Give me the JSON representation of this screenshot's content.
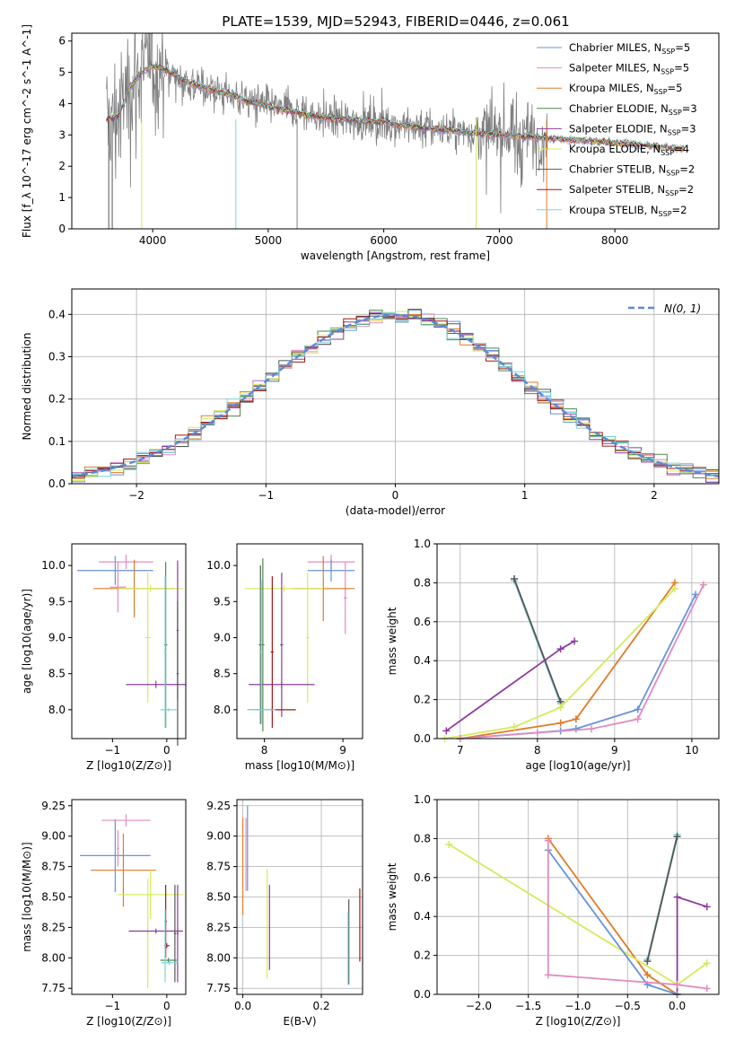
{
  "figure": {
    "title": "PLATE=1539, MJD=52943, FIBERID=0446, z=0.061"
  },
  "colors": {
    "chabrier_miles": "#6593dc",
    "salpeter_miles": "#e28bbf",
    "kroupa_miles": "#e07b27",
    "chabrier_elodie": "#4a8a4a",
    "salpeter_elodie": "#8d3ba0",
    "kroupa_elodie": "#d6ea5a",
    "chabrier_stelib": "#555555",
    "salpeter_stelib": "#a01818",
    "kroupa_stelib": "#7fd4d8",
    "spectrum": "#7f7f7f",
    "gaussian": "#5b8ad8"
  },
  "chart_data": [
    {
      "id": "spectrum",
      "type": "line",
      "title": "PLATE=1539, MJD=52943, FIBERID=0446, z=0.061",
      "xlabel": "wavelength [Angstrom, rest frame]",
      "ylabel": "Flux [f_λ 10^-17 erg cm^-2 s^-1 A^-1]",
      "xlim": [
        3300,
        8900
      ],
      "ylim": [
        0,
        6.25
      ],
      "xticks": [
        "4000",
        "5000",
        "6000",
        "7000",
        "8000"
      ],
      "yticks": [
        "0",
        "1",
        "2",
        "3",
        "4",
        "5",
        "6"
      ],
      "legend_position": "top-right",
      "legend": [
        {
          "base": "Chabrier MILES, N",
          "sub": "SSP",
          "tail": "=5",
          "color": "#6593dc"
        },
        {
          "base": "Salpeter MILES, N",
          "sub": "SSP",
          "tail": "=5",
          "color": "#e28bbf"
        },
        {
          "base": "Kroupa MILES, N",
          "sub": "SSP",
          "tail": "=5",
          "color": "#e07b27"
        },
        {
          "base": "Chabrier ELODIE, N",
          "sub": "SSP",
          "tail": "=3",
          "color": "#4a8a4a"
        },
        {
          "base": "Salpeter ELODIE, N",
          "sub": "SSP",
          "tail": "=3",
          "color": "#8d3ba0"
        },
        {
          "base": "Kroupa ELODIE, N",
          "sub": "SSP",
          "tail": "=4",
          "color": "#d6ea5a"
        },
        {
          "base": "Chabrier STELIB, N",
          "sub": "SSP",
          "tail": "=2",
          "color": "#555555"
        },
        {
          "base": "Salpeter STELIB, N",
          "sub": "SSP",
          "tail": "=2",
          "color": "#a01818"
        },
        {
          "base": "Kroupa STELIB, N",
          "sub": "SSP",
          "tail": "=2",
          "color": "#7fd4d8"
        }
      ],
      "continuum": {
        "x": [
          3600,
          3700,
          3800,
          3900,
          4000,
          4100,
          4200,
          4300,
          4400,
          4500,
          4600,
          4700,
          4800,
          4900,
          5000,
          5200,
          5400,
          5600,
          5800,
          6000,
          6200,
          6400,
          6600,
          6800,
          7000,
          7200,
          7400,
          7600,
          7800,
          8000,
          8200,
          8400,
          8600
        ],
        "y": [
          3.5,
          3.6,
          4.5,
          5.0,
          5.2,
          5.1,
          4.9,
          4.7,
          4.55,
          4.45,
          4.35,
          4.25,
          4.1,
          4.0,
          3.9,
          3.75,
          3.6,
          3.5,
          3.45,
          3.4,
          3.3,
          3.2,
          3.15,
          3.05,
          3.0,
          2.95,
          2.9,
          2.85,
          2.8,
          2.75,
          2.7,
          2.62,
          2.55
        ]
      }
    },
    {
      "id": "residuals",
      "type": "bar",
      "xlabel": "(data-model)/error",
      "ylabel": "Normed distribution",
      "xlim": [
        -2.5,
        2.5
      ],
      "ylim": [
        0,
        0.46
      ],
      "xticks": [
        "−2",
        "−1",
        "0",
        "1",
        "2"
      ],
      "yticks": [
        "0.0",
        "0.1",
        "0.2",
        "0.3",
        "0.4"
      ],
      "legend_label": "N(0, 1)",
      "legend_position": "top-right",
      "bin_width": 0.1,
      "bins_from": -2.5
    },
    {
      "id": "age_vs_Z",
      "type": "scatter",
      "xlabel": "Z [log10(Z/Z⊙)]",
      "ylabel": "age [log10(age/yr)]",
      "xlim": [
        -1.75,
        0.35
      ],
      "ylim": [
        7.6,
        10.3
      ],
      "xticks": [
        "−1",
        "0"
      ],
      "yticks": [
        "8.0",
        "8.5",
        "9.0",
        "9.5",
        "10.0"
      ],
      "points": [
        {
          "x": -0.95,
          "xerr": 0.7,
          "y": 9.93,
          "yerr": 0.2,
          "c": "#6593dc"
        },
        {
          "x": -0.75,
          "xerr": 0.5,
          "y": 10.05,
          "yerr": 0.1,
          "c": "#e28bbf"
        },
        {
          "x": -0.9,
          "xerr": 0.15,
          "y": 9.7,
          "yerr": 0.35,
          "c": "#e28bbf"
        },
        {
          "x": -0.6,
          "xerr": 0.75,
          "y": 9.68,
          "yerr": 0.4,
          "c": "#e07b27"
        },
        {
          "x": -0.3,
          "xerr": 0.6,
          "y": 9.68,
          "yerr": 0.05,
          "c": "#d6ea5a"
        },
        {
          "x": -0.35,
          "xerr": 0.05,
          "y": 9.0,
          "yerr": 0.9,
          "c": "#d6ea5a"
        },
        {
          "x": -0.2,
          "xerr": 0.55,
          "y": 8.35,
          "yerr": 0.05,
          "c": "#8d3ba0"
        },
        {
          "x": 0.2,
          "xerr": 0.02,
          "y": 9.1,
          "yerr": 0.97,
          "c": "#8d3ba0"
        },
        {
          "x": -0.02,
          "xerr": 0.03,
          "y": 8.9,
          "yerr": 1.15,
          "c": "#4a8a4a"
        },
        {
          "x": 0.2,
          "xerr": 0.02,
          "y": 8.5,
          "yerr": 1.0,
          "c": "#555555"
        },
        {
          "x": 0.03,
          "xerr": 0.15,
          "y": 8.0,
          "yerr": 0.02,
          "c": "#7fd4d8"
        },
        {
          "x": -0.03,
          "xerr": 0.02,
          "y": 8.8,
          "yerr": 1.05,
          "c": "#7fd4d8"
        }
      ]
    },
    {
      "id": "age_vs_mass",
      "type": "scatter",
      "xlabel": "mass [log10(M/M⊙)]",
      "ylabel": "",
      "xlim": [
        7.65,
        9.25
      ],
      "ylim": [
        7.6,
        10.3
      ],
      "xticks": [
        "8",
        "9"
      ],
      "yticks": [
        "8.0",
        "8.5",
        "9.0",
        "9.5",
        "10.0"
      ],
      "points": [
        {
          "x": 8.85,
          "xerr": 0.3,
          "y": 10.05,
          "yerr": 0.1,
          "c": "#e28bbf"
        },
        {
          "x": 8.85,
          "xerr": 0.3,
          "y": 9.93,
          "yerr": 0.15,
          "c": "#6593dc"
        },
        {
          "x": 9.03,
          "xerr": 0.02,
          "y": 9.55,
          "yerr": 0.5,
          "c": "#e28bbf"
        },
        {
          "x": 8.75,
          "xerr": 0.4,
          "y": 9.68,
          "yerr": 0.45,
          "c": "#e07b27"
        },
        {
          "x": 8.25,
          "xerr": 0.5,
          "y": 9.68,
          "yerr": 0.05,
          "c": "#d6ea5a"
        },
        {
          "x": 8.55,
          "xerr": 0.02,
          "y": 9.0,
          "yerr": 0.9,
          "c": "#d6ea5a"
        },
        {
          "x": 8.22,
          "xerr": 0.42,
          "y": 8.35,
          "yerr": 0.05,
          "c": "#8d3ba0"
        },
        {
          "x": 8.22,
          "xerr": 0.02,
          "y": 8.9,
          "yerr": 1.0,
          "c": "#8d3ba0"
        },
        {
          "x": 8.1,
          "xerr": 0.02,
          "y": 8.8,
          "yerr": 1.05,
          "c": "#a01818"
        },
        {
          "x": 8.1,
          "xerr": 0.3,
          "y": 8.0,
          "yerr": 0.02,
          "c": "#a01818"
        },
        {
          "x": 7.98,
          "xerr": 0.02,
          "y": 8.9,
          "yerr": 1.2,
          "c": "#4a8a4a"
        },
        {
          "x": 7.95,
          "xerr": 0.02,
          "y": 8.9,
          "yerr": 1.1,
          "c": "#555555"
        },
        {
          "x": 7.96,
          "xerr": 0.02,
          "y": 8.8,
          "yerr": 1.0,
          "c": "#7fd4d8"
        },
        {
          "x": 7.96,
          "xerr": 0.18,
          "y": 8.0,
          "yerr": 0.02,
          "c": "#7fd4d8"
        }
      ]
    },
    {
      "id": "weight_vs_age",
      "type": "line",
      "xlabel": "age [log10(age/yr)]",
      "ylabel": "mass weight",
      "xlim": [
        6.7,
        10.35
      ],
      "ylim": [
        0,
        1.0
      ],
      "xticks": [
        "7",
        "8",
        "9",
        "10"
      ],
      "yticks": [
        "0.0",
        "0.2",
        "0.4",
        "0.6",
        "0.8",
        "1.0"
      ],
      "series": [
        {
          "c": "#7fd4d8",
          "x": [
            7.7,
            8.3
          ],
          "y": [
            0.81,
            0.18
          ]
        },
        {
          "c": "#555555",
          "x": [
            7.7,
            8.3
          ],
          "y": [
            0.82,
            0.19
          ]
        },
        {
          "c": "#8d3ba0",
          "x": [
            6.82,
            8.3,
            8.48
          ],
          "y": [
            0.04,
            0.46,
            0.5
          ]
        },
        {
          "c": "#e07b27",
          "x": [
            7.0,
            8.3,
            8.5,
            9.78
          ],
          "y": [
            0.0,
            0.08,
            0.1,
            0.8
          ]
        },
        {
          "c": "#d6ea5a",
          "x": [
            6.8,
            7.7,
            8.3,
            9.78
          ],
          "y": [
            0.0,
            0.06,
            0.16,
            0.77
          ]
        },
        {
          "c": "#6593dc",
          "x": [
            7.0,
            8.3,
            8.5,
            9.3,
            10.05
          ],
          "y": [
            0.0,
            0.04,
            0.05,
            0.15,
            0.74
          ]
        },
        {
          "c": "#e28bbf",
          "x": [
            7.0,
            8.0,
            8.7,
            9.3,
            10.15
          ],
          "y": [
            0.0,
            0.03,
            0.05,
            0.1,
            0.79
          ]
        }
      ]
    },
    {
      "id": "mass_vs_Z",
      "type": "scatter",
      "xlabel": "Z [log10(Z/Z⊙)]",
      "ylabel": "mass [log10(M/M⊙)]",
      "xlim": [
        -1.75,
        0.35
      ],
      "ylim": [
        7.7,
        9.3
      ],
      "xticks": [
        "−1",
        "0"
      ],
      "yticks": [
        "7.75",
        "8.00",
        "8.25",
        "8.50",
        "8.75",
        "9.00",
        "9.25"
      ],
      "points": [
        {
          "x": -0.95,
          "xerr": 0.65,
          "y": 8.84,
          "yerr": 0.3,
          "c": "#6593dc"
        },
        {
          "x": -0.75,
          "xerr": 0.45,
          "y": 9.13,
          "yerr": 0.05,
          "c": "#e28bbf"
        },
        {
          "x": -0.9,
          "xerr": 0.02,
          "y": 8.9,
          "yerr": 0.15,
          "c": "#e28bbf"
        },
        {
          "x": -0.8,
          "xerr": 0.6,
          "y": 8.72,
          "yerr": 0.3,
          "c": "#e07b27"
        },
        {
          "x": -0.3,
          "xerr": 0.6,
          "y": 8.52,
          "yerr": 0.2,
          "c": "#d6ea5a"
        },
        {
          "x": -0.35,
          "xerr": 0.02,
          "y": 8.2,
          "yerr": 0.45,
          "c": "#d6ea5a"
        },
        {
          "x": -0.2,
          "xerr": 0.5,
          "y": 8.22,
          "yerr": 0.02,
          "c": "#8d3ba0"
        },
        {
          "x": 0.2,
          "xerr": 0.02,
          "y": 8.2,
          "yerr": 0.4,
          "c": "#8d3ba0"
        },
        {
          "x": -0.02,
          "xerr": 0.02,
          "y": 8.3,
          "yerr": 0.3,
          "c": "#a01818"
        },
        {
          "x": 0.0,
          "xerr": 0.05,
          "y": 8.1,
          "yerr": 0.02,
          "c": "#a01818"
        },
        {
          "x": 0.15,
          "xerr": 0.02,
          "y": 8.2,
          "yerr": 0.4,
          "c": "#555555"
        },
        {
          "x": 0.03,
          "xerr": 0.15,
          "y": 7.98,
          "yerr": 0.02,
          "c": "#4a8a4a"
        },
        {
          "x": -0.03,
          "xerr": 0.02,
          "y": 8.1,
          "yerr": 0.3,
          "c": "#7fd4d8"
        },
        {
          "x": 0.05,
          "xerr": 0.15,
          "y": 7.96,
          "yerr": 0.02,
          "c": "#7fd4d8"
        }
      ]
    },
    {
      "id": "mass_vs_ebv",
      "type": "scatter",
      "xlabel": "E(B-V)",
      "ylabel": "",
      "xlim": [
        -0.015,
        0.305
      ],
      "ylim": [
        7.7,
        9.3
      ],
      "xticks": [
        "0.0",
        "0.2"
      ],
      "yticks": [
        "7.75",
        "8.00",
        "8.25",
        "8.50",
        "8.75",
        "9.00",
        "9.25"
      ],
      "points": [
        {
          "x": 0.0,
          "y": 8.75,
          "yerr": 0.4,
          "c": "#e07b27"
        },
        {
          "x": 0.012,
          "y": 8.9,
          "yerr": 0.35,
          "c": "#6593dc"
        },
        {
          "x": 0.008,
          "y": 8.85,
          "yerr": 0.3,
          "c": "#e28bbf"
        },
        {
          "x": 0.062,
          "y": 8.28,
          "yerr": 0.45,
          "c": "#d6ea5a"
        },
        {
          "x": 0.068,
          "y": 8.25,
          "yerr": 0.35,
          "c": "#8d3ba0"
        },
        {
          "x": 0.27,
          "y": 8.13,
          "yerr": 0.35,
          "c": "#555555"
        },
        {
          "x": 0.268,
          "y": 8.08,
          "yerr": 0.3,
          "c": "#7fd4d8"
        },
        {
          "x": 0.298,
          "y": 8.27,
          "yerr": 0.3,
          "c": "#a01818"
        }
      ]
    },
    {
      "id": "weight_vs_Z",
      "type": "line",
      "xlabel": "Z [log10(Z/Z⊙)]",
      "ylabel": "mass weight",
      "xlim": [
        -2.42,
        0.42
      ],
      "ylim": [
        0,
        1.0
      ],
      "xticks": [
        "−2.0",
        "−1.5",
        "−1.0",
        "−0.5",
        "0.0"
      ],
      "yticks": [
        "0.0",
        "0.2",
        "0.4",
        "0.6",
        "0.8",
        "1.0"
      ],
      "series": [
        {
          "c": "#7fd4d8",
          "x": [
            -0.3,
            0.0
          ],
          "y": [
            0.18,
            0.82
          ]
        },
        {
          "c": "#555555",
          "x": [
            -0.3,
            0.0
          ],
          "y": [
            0.17,
            0.81
          ]
        },
        {
          "c": "#8d3ba0",
          "x": [
            0.0,
            0.0,
            0.3
          ],
          "y": [
            0.0,
            0.5,
            0.45
          ]
        },
        {
          "c": "#e07b27",
          "x": [
            -1.3,
            -0.3,
            0.0
          ],
          "y": [
            0.8,
            0.1,
            0.0
          ]
        },
        {
          "c": "#d6ea5a",
          "x": [
            -2.3,
            0.0,
            0.3
          ],
          "y": [
            0.77,
            0.05,
            0.16
          ]
        },
        {
          "c": "#6593dc",
          "x": [
            -1.3,
            -0.3,
            0.0
          ],
          "y": [
            0.74,
            0.05,
            0.0
          ]
        },
        {
          "c": "#e28bbf",
          "x": [
            -1.3,
            -1.3,
            0.0,
            0.3
          ],
          "y": [
            0.79,
            0.1,
            0.05,
            0.03
          ]
        }
      ]
    }
  ]
}
